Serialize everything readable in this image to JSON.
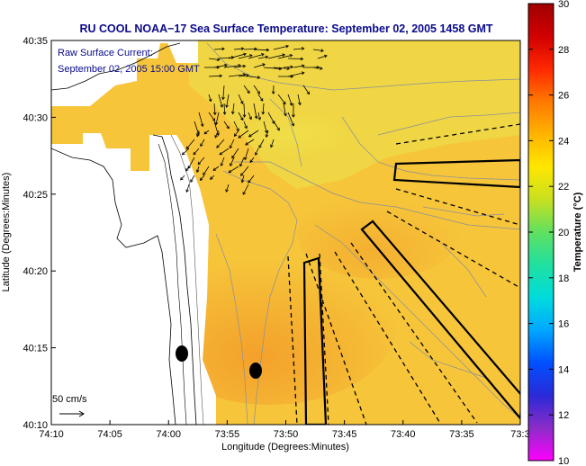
{
  "title": "RU COOL  NOAA−17  Sea Surface Temperature:  September 02, 2005 1458 GMT",
  "legend": {
    "line1": "Raw Surface Current:",
    "line2": "September 02, 2005 15:00 GMT"
  },
  "scale_label": "50 cm/s",
  "x_axis": {
    "label": "Longitude (Degrees:Minutes)",
    "ticks": [
      "74:10",
      "74:05",
      "74:00",
      "73:55",
      "73:50",
      "73:45",
      "73:40",
      "73:35",
      "73:3"
    ]
  },
  "y_axis": {
    "label": "Latitude (Degrees:Minutes)",
    "ticks": [
      "40:35",
      "40:30",
      "40:25",
      "40:20",
      "40:15",
      "40:10"
    ]
  },
  "colorbar": {
    "label": "Temperature (°C)",
    "ticks": [
      "30",
      "28",
      "26",
      "24",
      "22",
      "20",
      "18",
      "16",
      "14",
      "12",
      "10"
    ],
    "stops": [
      "#ff00ff",
      "#8c2cc8",
      "#2a2ad8",
      "#0050ff",
      "#00a8ff",
      "#00dcdc",
      "#20e0a0",
      "#60e060",
      "#c8e020",
      "#ffe600",
      "#ffb400",
      "#ff7800",
      "#ff2800",
      "#d00000",
      "#a00000"
    ]
  },
  "colors": {
    "sst_main": "#f7c93a",
    "sst_warm": "#f4a92c",
    "sst_cool": "#eedd48",
    "land": "#ffffff"
  }
}
